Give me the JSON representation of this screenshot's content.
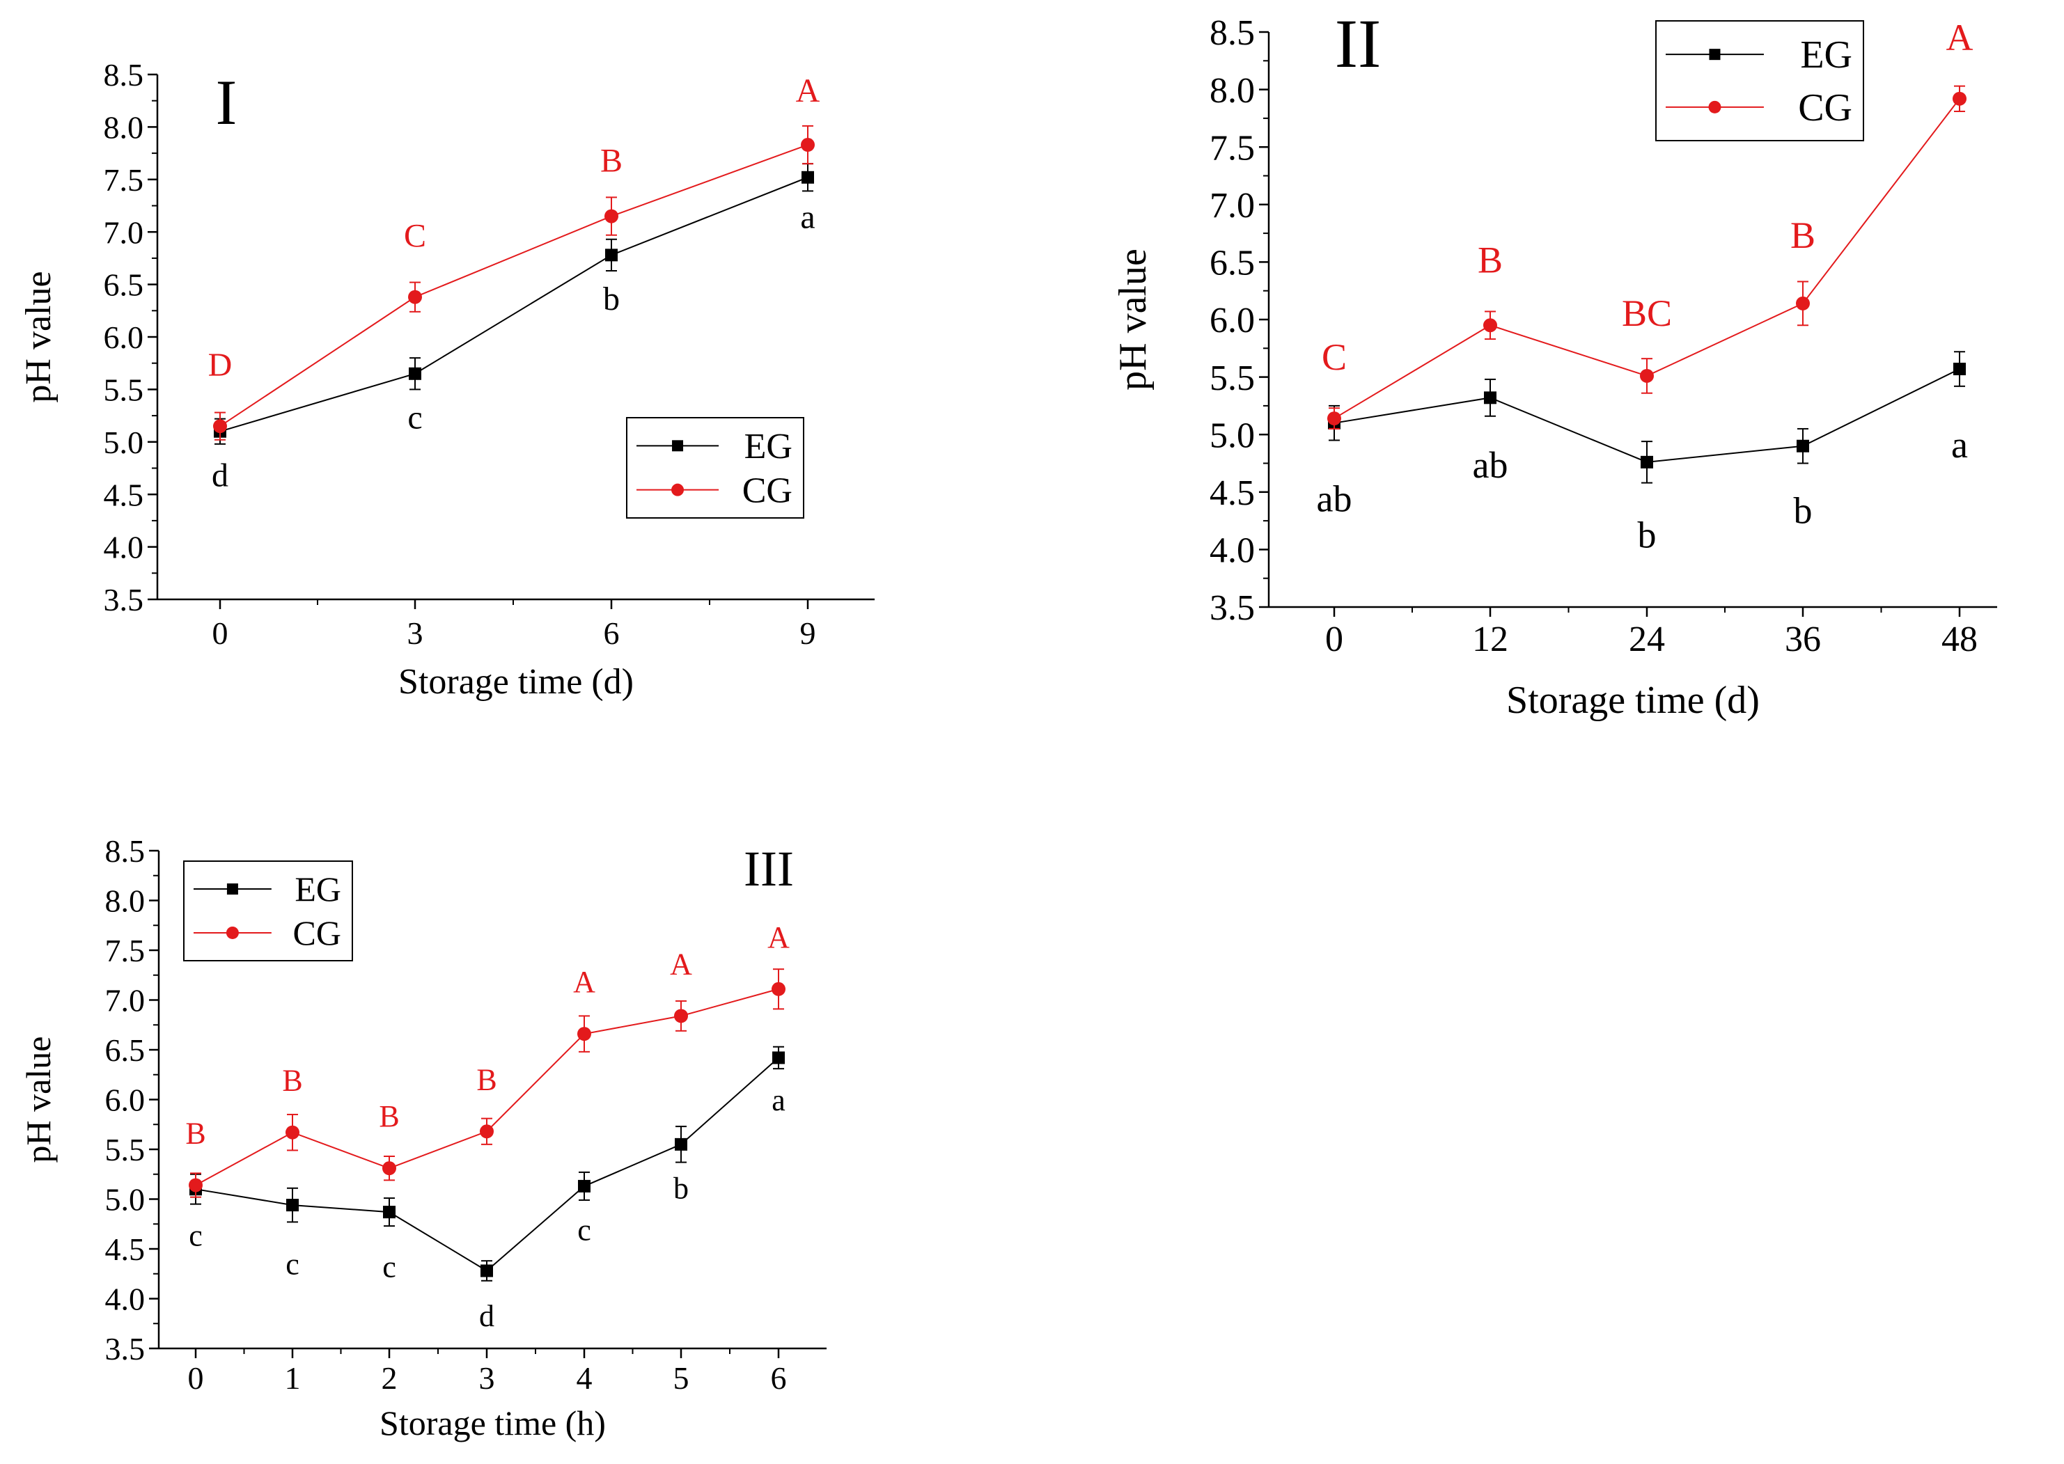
{
  "chart_data": [
    {
      "type": "line",
      "panel_label": "I",
      "xlabel": "Storage time (d)",
      "ylabel": "pH value",
      "categories": [
        "0",
        "3",
        "6",
        "9"
      ],
      "ylim": [
        3.5,
        8.5
      ],
      "yticks": [
        "3.5",
        "4.0",
        "4.5",
        "5.0",
        "5.5",
        "6.0",
        "6.5",
        "7.0",
        "7.5",
        "8.0",
        "8.5"
      ],
      "legend_position": "lower-right",
      "series": [
        {
          "name": "EG",
          "marker": "square",
          "color": "#000000",
          "values": [
            5.1,
            5.65,
            6.78,
            7.52
          ],
          "errors": [
            0.12,
            0.15,
            0.15,
            0.13
          ],
          "letters": [
            "d",
            "c",
            "b",
            "a"
          ]
        },
        {
          "name": "CG",
          "marker": "circle",
          "color": "#e31a1c",
          "values": [
            5.15,
            6.38,
            7.15,
            7.83
          ],
          "errors": [
            0.13,
            0.14,
            0.18,
            0.18
          ],
          "letters": [
            "D",
            "C",
            "B",
            "A"
          ]
        }
      ]
    },
    {
      "type": "line",
      "panel_label": "II",
      "xlabel": "Storage time (d)",
      "ylabel": "pH value",
      "categories": [
        "0",
        "12",
        "24",
        "36",
        "48"
      ],
      "ylim": [
        3.5,
        8.5
      ],
      "yticks": [
        "3.5",
        "4.0",
        "4.5",
        "5.0",
        "5.5",
        "6.0",
        "6.5",
        "7.0",
        "7.5",
        "8.0",
        "8.5"
      ],
      "legend_position": "top-center",
      "series": [
        {
          "name": "EG",
          "marker": "square",
          "color": "#000000",
          "values": [
            5.1,
            5.32,
            4.76,
            4.9,
            5.57
          ],
          "errors": [
            0.15,
            0.16,
            0.18,
            0.15,
            0.15
          ],
          "letters": [
            "ab",
            "ab",
            "b",
            "b",
            "a"
          ]
        },
        {
          "name": "CG",
          "marker": "circle",
          "color": "#e31a1c",
          "values": [
            5.14,
            5.95,
            5.51,
            6.14,
            7.92
          ],
          "errors": [
            0.09,
            0.12,
            0.15,
            0.19,
            0.11
          ],
          "letters": [
            "C",
            "B",
            "BC",
            "B",
            "A"
          ]
        }
      ]
    },
    {
      "type": "line",
      "panel_label": "III",
      "xlabel": "Storage time (h)",
      "ylabel": "pH value",
      "categories": [
        "0",
        "1",
        "2",
        "3",
        "4",
        "5",
        "6"
      ],
      "ylim": [
        3.5,
        8.5
      ],
      "yticks": [
        "3.5",
        "4.0",
        "4.5",
        "5.0",
        "5.5",
        "6.0",
        "6.5",
        "7.0",
        "7.5",
        "8.0",
        "8.5"
      ],
      "legend_position": "top-left",
      "series": [
        {
          "name": "EG",
          "marker": "square",
          "color": "#000000",
          "values": [
            5.1,
            4.94,
            4.87,
            4.28,
            5.13,
            5.55,
            6.42
          ],
          "errors": [
            0.15,
            0.17,
            0.14,
            0.1,
            0.14,
            0.18,
            0.11
          ],
          "letters": [
            "c",
            "c",
            "c",
            "d",
            "c",
            "b",
            "a"
          ]
        },
        {
          "name": "CG",
          "marker": "circle",
          "color": "#e31a1c",
          "values": [
            5.14,
            5.67,
            5.31,
            5.68,
            6.66,
            6.84,
            7.11
          ],
          "errors": [
            0.12,
            0.18,
            0.12,
            0.13,
            0.18,
            0.15,
            0.2
          ],
          "letters": [
            "B",
            "B",
            "B",
            "B",
            "A",
            "A",
            "A"
          ]
        }
      ]
    }
  ]
}
